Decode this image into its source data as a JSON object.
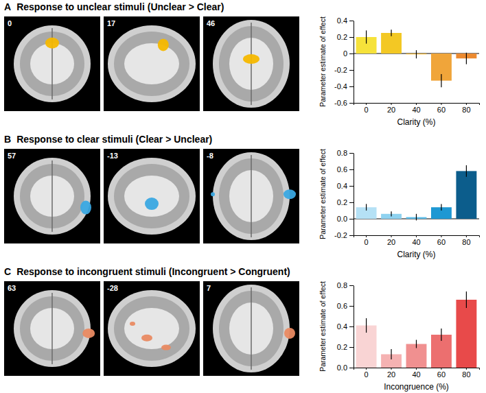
{
  "chart_data": [
    {
      "type": "bar",
      "panel": "A",
      "title": "Response to unclear stimuli (Unclear > Clear)",
      "slices": [
        0,
        17,
        46
      ],
      "x_label": "Clarity (%)",
      "y_label": "Parameter estimate of effect",
      "categories": [
        "0",
        "20",
        "40",
        "60",
        "80"
      ],
      "values": [
        0.2,
        0.25,
        -0.01,
        -0.33,
        -0.06
      ],
      "errors": [
        0.08,
        0.04,
        0.05,
        0.08,
        0.07
      ],
      "colors": [
        "#f6e23a",
        "#f3c824",
        "#eeb12c",
        "#f0a53a",
        "#ec8a30"
      ],
      "ylim": [
        -0.6,
        0.4
      ],
      "yticks": [
        -0.6,
        -0.4,
        -0.2,
        0,
        0.2,
        0.4
      ]
    },
    {
      "type": "bar",
      "panel": "B",
      "title": "Response to clear stimuli (Clear > Unclear)",
      "slices": [
        57,
        -13,
        -8
      ],
      "x_label": "Clarity (%)",
      "y_label": "Parameter estimate of effect",
      "categories": [
        "0",
        "20",
        "40",
        "60",
        "80"
      ],
      "values": [
        0.14,
        0.06,
        0.02,
        0.14,
        0.58
      ],
      "errors": [
        0.04,
        0.03,
        0.04,
        0.04,
        0.07
      ],
      "colors": [
        "#b5e1f5",
        "#8fd2f0",
        "#5cbde9",
        "#1f98d3",
        "#0c5d8c"
      ],
      "ylim": [
        -0.2,
        0.8
      ],
      "yticks": [
        -0.2,
        {
          "value": 0,
          "label": "0.0"
        },
        0.2,
        0.4,
        0.6,
        0.8
      ]
    },
    {
      "type": "bar",
      "panel": "C",
      "title": "Response to incongruent stimuli (Incongruent > Congruent)",
      "slices": [
        63,
        -28,
        7
      ],
      "x_label": "Incongruence (%)",
      "y_label": "Parameter estimate of effect",
      "categories": [
        "0",
        "20",
        "40",
        "60",
        "80"
      ],
      "values": [
        0.41,
        0.13,
        0.23,
        0.32,
        0.66
      ],
      "errors": [
        0.07,
        0.05,
        0.04,
        0.06,
        0.08
      ],
      "colors": [
        "#f9d4d4",
        "#f5b2b2",
        "#f09090",
        "#ec6f6f",
        "#e84a4a"
      ],
      "ylim": [
        0,
        0.8
      ],
      "yticks": [
        {
          "value": 0,
          "label": "0.0"
        },
        0.2,
        0.4,
        0.6,
        0.8
      ]
    }
  ]
}
